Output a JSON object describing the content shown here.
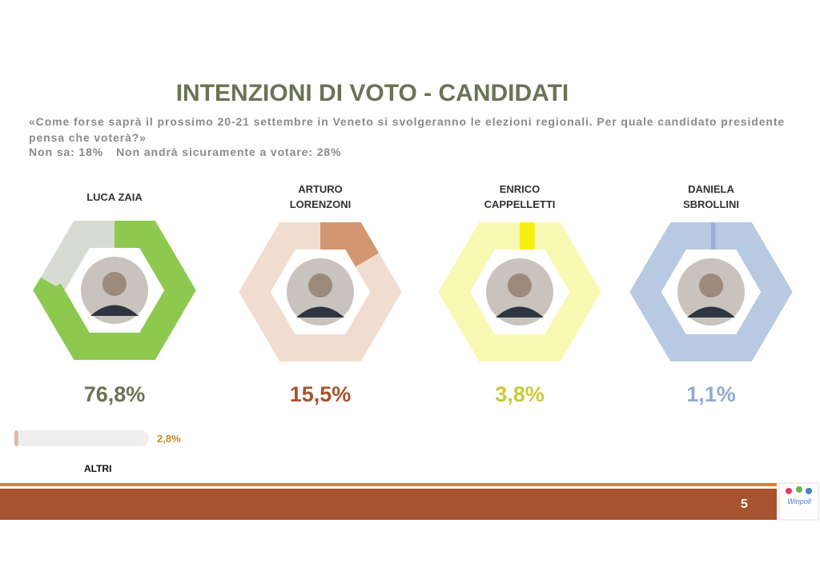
{
  "title": "INTENZIONI DI VOTO - CANDIDATI",
  "question": "«Come forse saprà il prossimo 20-21 settembre in Veneto si svolgeranno le elezioni regionali. Per quale candidato presidente pensa che voterà?»",
  "notes": [
    "Non sa: 18%",
    "Non andrà sicuramente a votare: 28%"
  ],
  "chart_data": {
    "type": "hexagon-gauge",
    "categories": [
      "LUCA ZAIA",
      "ARTURO LORENZONI",
      "ENRICO CAPPELLETTI",
      "DANIELA SBROLLINI"
    ],
    "values": [
      76.8,
      15.5,
      3.8,
      1.1
    ],
    "value_labels": [
      "76,8%",
      "15,5%",
      "3,8%",
      "1,1%"
    ],
    "colors": [
      "#8dc84f",
      "#d29671",
      "#f6f010",
      "#98b1d5"
    ],
    "track_colors": [
      "#d7dcd3",
      "#f1ddd0",
      "#f8f8b2",
      "#b7cae2"
    ],
    "label_colors": [
      "#6b7356",
      "#a4552f",
      "#c9c93a",
      "#92abd2"
    ]
  },
  "others": {
    "type": "bar",
    "label": "ALTRI",
    "value": 2.8,
    "value_label": "2,8%",
    "color": "#d7b9a8",
    "track_color": "#efefef",
    "label_color": "#c98a2e"
  },
  "page_number": "5",
  "logo": "Winpoll"
}
